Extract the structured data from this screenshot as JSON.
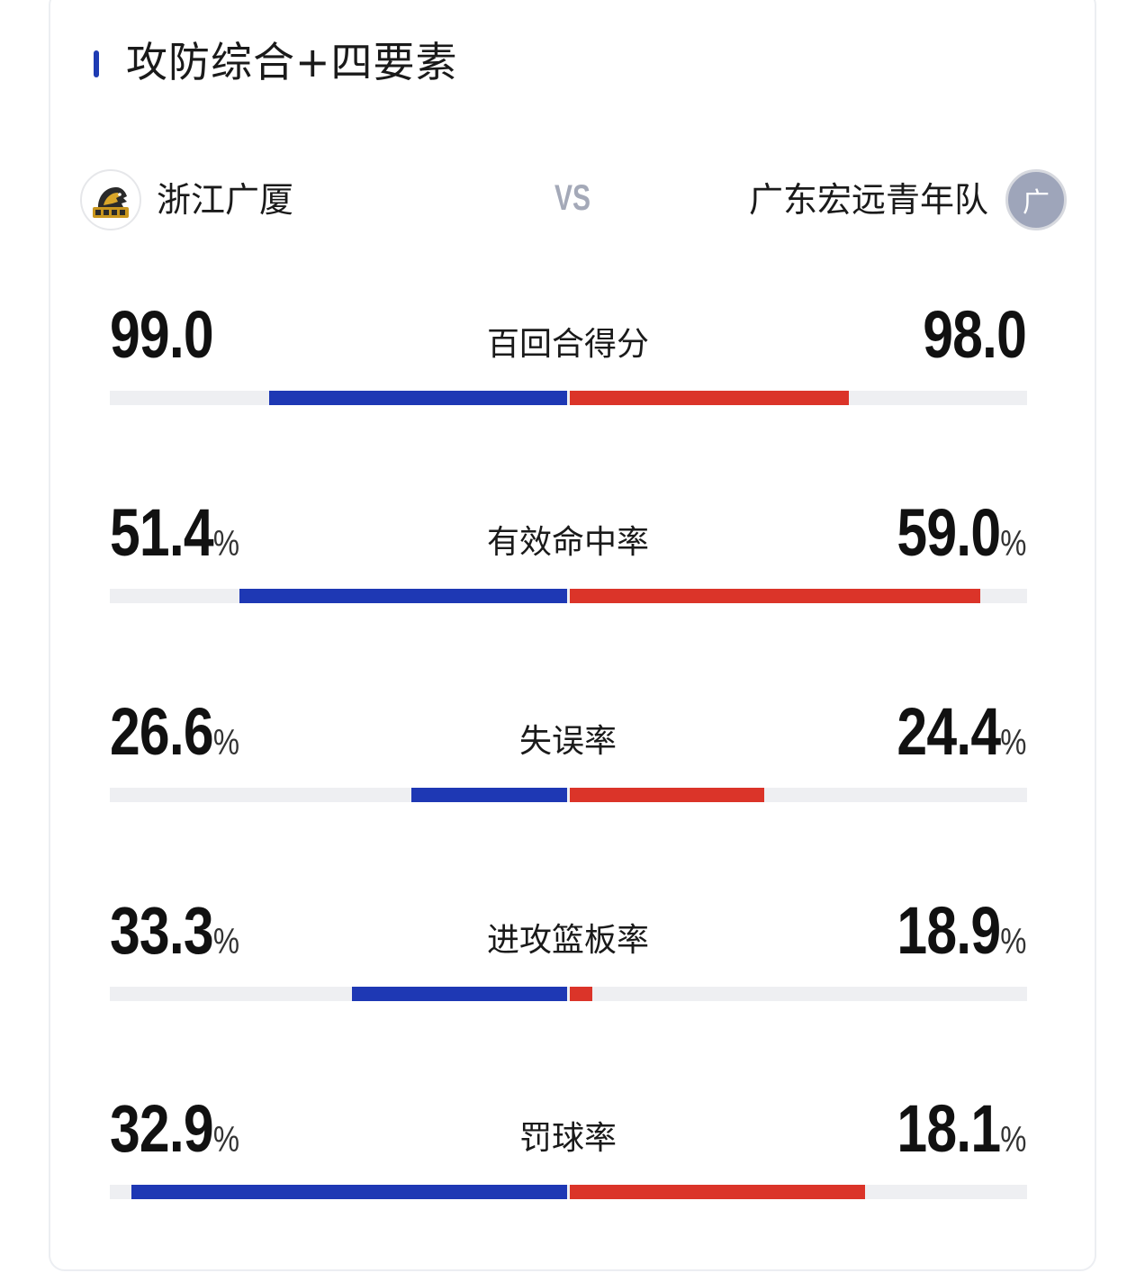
{
  "section": {
    "title": "攻防综合+四要素"
  },
  "teams": {
    "home": {
      "name": "浙江广厦",
      "logo_icon": "lion-logo",
      "color": "#1e38b4"
    },
    "away": {
      "name": "广东宏远青年队",
      "logo_text": "广",
      "color": "#db3429"
    },
    "vs_label": "VS"
  },
  "stats": [
    {
      "label": "百回合得分",
      "home": "99.0",
      "away": "98.0",
      "unit": "",
      "home_bar": 0.65,
      "away_bar": 0.61
    },
    {
      "label": "有效命中率",
      "home": "51.4",
      "away": "59.0",
      "unit": "%",
      "home_bar": 0.715,
      "away_bar": 0.895
    },
    {
      "label": "失误率",
      "home": "26.6",
      "away": "24.4",
      "unit": "%",
      "home_bar": 0.34,
      "away_bar": 0.425
    },
    {
      "label": "进攻篮板率",
      "home": "33.3",
      "away": "18.9",
      "unit": "%",
      "home_bar": 0.47,
      "away_bar": 0.05
    },
    {
      "label": "罚球率",
      "home": "32.9",
      "away": "18.1",
      "unit": "%",
      "home_bar": 0.95,
      "away_bar": 0.645
    }
  ]
}
